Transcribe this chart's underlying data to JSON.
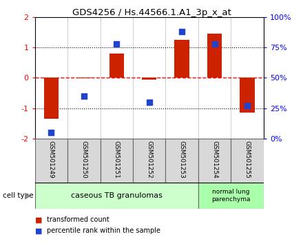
{
  "title": "GDS4256 / Hs.44566.1.A1_3p_x_at",
  "samples": [
    "GSM501249",
    "GSM501250",
    "GSM501251",
    "GSM501252",
    "GSM501253",
    "GSM501254",
    "GSM501255"
  ],
  "transformed_count": [
    -1.35,
    -0.02,
    0.8,
    -0.07,
    1.25,
    1.45,
    -1.15
  ],
  "percentile_rank": [
    5,
    35,
    78,
    30,
    88,
    78,
    27
  ],
  "bar_color": "#cc2200",
  "dot_color": "#2244cc",
  "ylim_left": [
    -2,
    2
  ],
  "ylim_right": [
    0,
    100
  ],
  "yticks_left": [
    -2,
    -1,
    0,
    1,
    2
  ],
  "yticks_right": [
    0,
    25,
    50,
    75,
    100
  ],
  "hlines": [
    -1,
    0,
    1
  ],
  "hline_styles": [
    "dotted",
    "dashed",
    "dotted"
  ],
  "hline_colors": [
    "black",
    "red",
    "black"
  ],
  "group1_label": "caseous TB granulomas",
  "group1_indices": [
    0,
    1,
    2,
    3,
    4
  ],
  "group2_label": "normal lung\nparenchyma",
  "group2_indices": [
    5,
    6
  ],
  "group1_color": "#ccffcc",
  "group2_color": "#aaffaa",
  "cell_type_label": "cell type",
  "legend1_label": "transformed count",
  "legend2_label": "percentile rank within the sample",
  "bar_width": 0.45,
  "dot_size": 40,
  "bg_color": "#d8d8d8",
  "border_color": "#666666"
}
